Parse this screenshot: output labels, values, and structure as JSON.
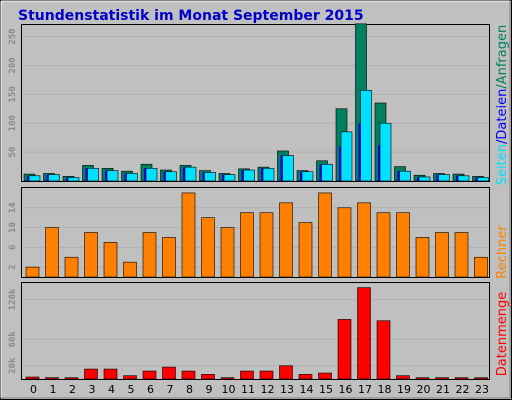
{
  "title": "Stundenstatistik im Monat September 2015",
  "colors": {
    "background": "#c0c0c0",
    "title": "#0000cc",
    "hits": "#008060",
    "files": "#0000ff",
    "pages": "#00e0ff",
    "sites": "#ff8000",
    "kbytes": "#ff0000",
    "grid": "#b0b0b0"
  },
  "legend_top": {
    "seiten": "Seiten",
    "dateien": "Dateien",
    "anfragen": "Anfragen",
    "sep": "/"
  },
  "legend_mid": "Rechner",
  "legend_bottom": "Datenmenge",
  "chart_data": [
    {
      "type": "bar",
      "name": "Seiten/Dateien/Anfragen",
      "categories": [
        "0",
        "1",
        "2",
        "3",
        "4",
        "5",
        "6",
        "7",
        "8",
        "9",
        "10",
        "11",
        "12",
        "13",
        "14",
        "15",
        "16",
        "17",
        "18",
        "19",
        "20",
        "21",
        "22",
        "23"
      ],
      "ylim": [
        0,
        270
      ],
      "yticks": [
        50,
        100,
        150,
        200,
        250
      ],
      "tick_labels": [
        "50",
        "100",
        "150",
        "200",
        "250"
      ],
      "series": [
        {
          "name": "Anfragen",
          "values": [
            12,
            13,
            8,
            27,
            22,
            17,
            29,
            19,
            27,
            18,
            13,
            21,
            24,
            52,
            18,
            35,
            125,
            272,
            135,
            25,
            10,
            13,
            12,
            8
          ]
        },
        {
          "name": "Dateien",
          "values": [
            9,
            11,
            6,
            22,
            18,
            13,
            22,
            16,
            24,
            15,
            11,
            19,
            22,
            44,
            16,
            29,
            60,
            100,
            62,
            17,
            7,
            11,
            9,
            6
          ]
        },
        {
          "name": "Seiten",
          "values": [
            9,
            11,
            6,
            22,
            18,
            13,
            22,
            16,
            24,
            15,
            11,
            19,
            22,
            44,
            16,
            29,
            85,
            157,
            100,
            17,
            7,
            11,
            9,
            6
          ]
        }
      ]
    },
    {
      "type": "bar",
      "name": "Rechner",
      "categories": [
        "0",
        "1",
        "2",
        "3",
        "4",
        "5",
        "6",
        "7",
        "8",
        "9",
        "10",
        "11",
        "12",
        "13",
        "14",
        "15",
        "16",
        "17",
        "18",
        "19",
        "20",
        "21",
        "22",
        "23"
      ],
      "ylim": [
        0,
        18
      ],
      "yticks": [
        2,
        6,
        10,
        14
      ],
      "tick_labels": [
        "2",
        "6",
        "10",
        "14"
      ],
      "series": [
        {
          "name": "Rechner",
          "values": [
            2,
            10,
            4,
            9,
            7,
            3,
            9,
            8,
            17,
            12,
            10,
            13,
            13,
            15,
            11,
            17,
            14,
            15,
            13,
            13,
            8,
            9,
            9,
            4
          ]
        }
      ]
    },
    {
      "type": "bar",
      "name": "Datenmenge",
      "categories": [
        "0",
        "1",
        "2",
        "3",
        "4",
        "5",
        "6",
        "7",
        "8",
        "9",
        "10",
        "11",
        "12",
        "13",
        "14",
        "15",
        "16",
        "17",
        "18",
        "19",
        "20",
        "21",
        "22",
        "23"
      ],
      "ylim": [
        0,
        145000
      ],
      "yticks": [
        20000,
        60000,
        120000
      ],
      "tick_labels": [
        "20k",
        "60k",
        "120k"
      ],
      "series": [
        {
          "name": "Datenmenge",
          "values": [
            3000,
            2000,
            2000,
            15000,
            15000,
            5000,
            12000,
            18000,
            12000,
            7000,
            2000,
            12000,
            12000,
            20000,
            7000,
            9000,
            90000,
            138000,
            88000,
            5000,
            2000,
            2000,
            2000,
            2000
          ]
        }
      ]
    }
  ]
}
